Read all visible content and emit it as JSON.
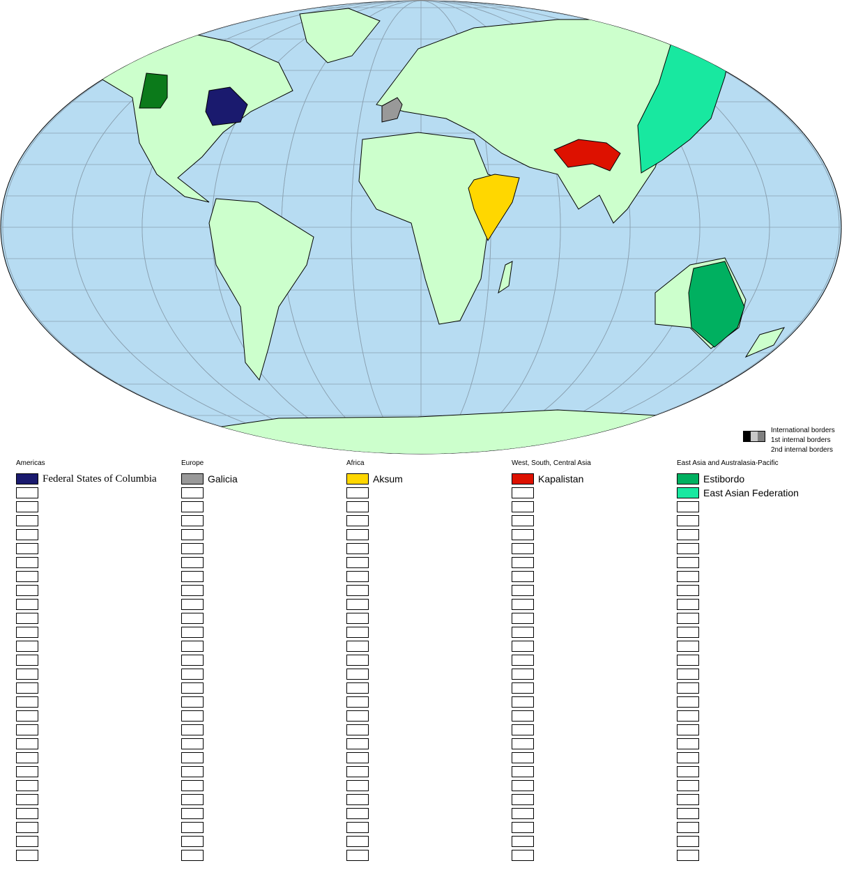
{
  "legend": {
    "borders": [
      "International borders",
      "1st internal borders",
      "2nd internal borders"
    ],
    "border_colors": [
      "#000000",
      "#c8c8c8",
      "#7f7f7f"
    ],
    "columns": [
      {
        "title": "Americas",
        "entries": [
          {
            "name": "Federal States of Columbia",
            "color": "#1a1a6e"
          }
        ]
      },
      {
        "title": "Europe",
        "entries": [
          {
            "name": "Galicia",
            "color": "#999999"
          }
        ]
      },
      {
        "title": "Africa",
        "entries": [
          {
            "name": "Aksum",
            "color": "#ffd700"
          }
        ]
      },
      {
        "title": "West, South, Central Asia",
        "entries": [
          {
            "name": "Kapalistan",
            "color": "#dd1100"
          }
        ]
      },
      {
        "title": "East Asia and Australasia-Pacific",
        "entries": [
          {
            "name": "Estibordo",
            "color": "#00b060"
          },
          {
            "name": "East Asian Federation",
            "color": "#18e8a0"
          }
        ]
      }
    ],
    "empty_rows_per_column": 27
  },
  "colors": {
    "ocean": "#b7dcf2",
    "land": "#ccffcc",
    "ice": "#dfe9f7",
    "cascadia": "#0b7a1a"
  }
}
